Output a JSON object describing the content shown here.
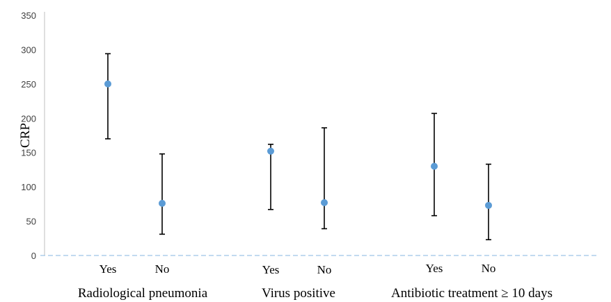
{
  "chart_data": {
    "type": "scatter",
    "title": "",
    "ylabel": "CRP",
    "xlabel": "",
    "ylim": [
      0,
      350
    ],
    "yticks": [
      0,
      50,
      100,
      150,
      200,
      250,
      300,
      350
    ],
    "grid": false,
    "legend": "none",
    "groups": [
      {
        "label": "Radiological pneumonia",
        "members": [
          0,
          1
        ]
      },
      {
        "label": "Virus positive",
        "members": [
          2,
          3
        ]
      },
      {
        "label": "Antibiotic treatment ≥ 10 days",
        "members": [
          4,
          5
        ]
      }
    ],
    "points": [
      {
        "label": "Yes",
        "value": 250,
        "low": 170,
        "high": 294
      },
      {
        "label": "No",
        "value": 76,
        "low": 31,
        "high": 148
      },
      {
        "label": "Yes",
        "value": 152,
        "low": 67,
        "high": 162
      },
      {
        "label": "No",
        "value": 77,
        "low": 39,
        "high": 186
      },
      {
        "label": "Yes",
        "value": 130,
        "low": 58,
        "high": 207
      },
      {
        "label": "No",
        "value": 73,
        "low": 23,
        "high": 133
      }
    ],
    "colors": {
      "point": "#5b9bd5",
      "errorbar": "#000000",
      "axis": "#bfbfbf",
      "baseline": "#9dc3e6"
    }
  }
}
